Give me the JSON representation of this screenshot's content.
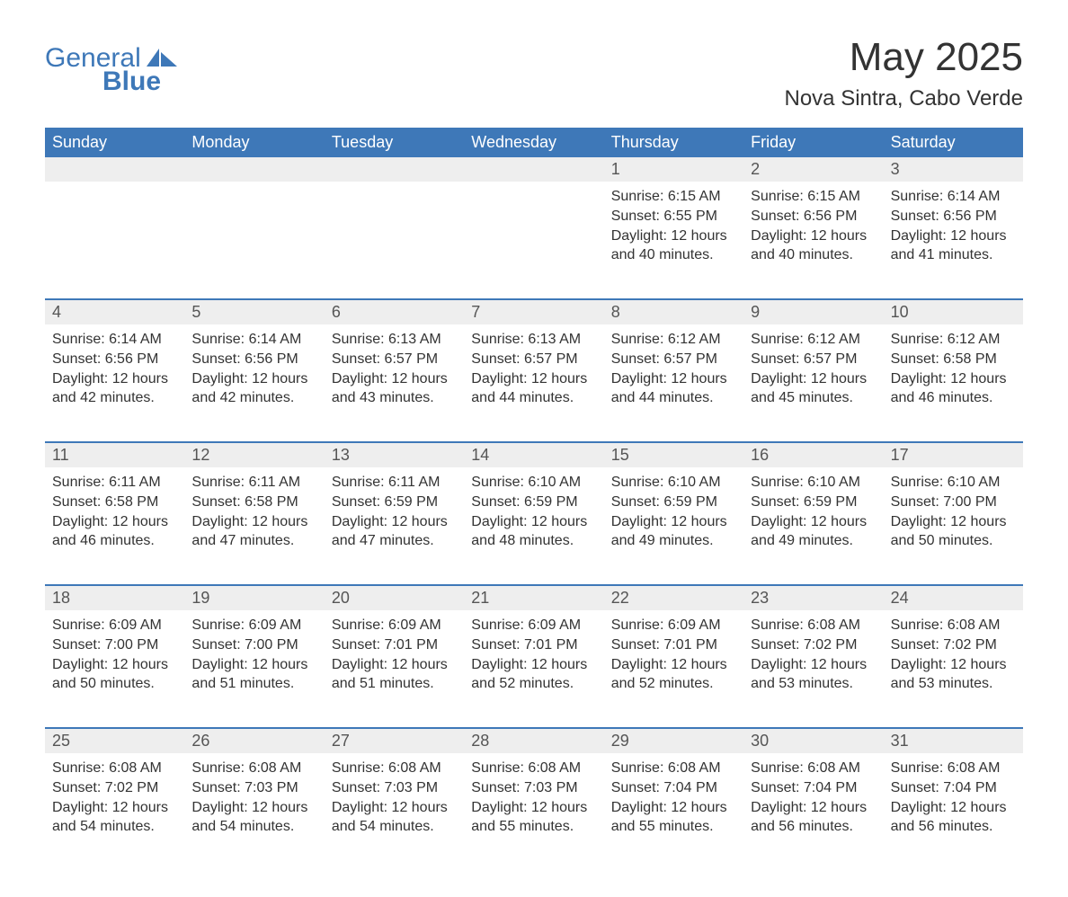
{
  "logo": {
    "text1": "General",
    "text2": "Blue",
    "icon_fill": "#3e78b8"
  },
  "colors": {
    "header_bg": "#3e78b8",
    "daynum_bg": "#eeeeee",
    "text": "#333333",
    "divider": "#3e78b8"
  },
  "title": "May 2025",
  "location": "Nova Sintra, Cabo Verde",
  "weekdays": [
    "Sunday",
    "Monday",
    "Tuesday",
    "Wednesday",
    "Thursday",
    "Friday",
    "Saturday"
  ],
  "weeks": [
    [
      {
        "day": "",
        "sunrise": "",
        "sunset": "",
        "daylight": ""
      },
      {
        "day": "",
        "sunrise": "",
        "sunset": "",
        "daylight": ""
      },
      {
        "day": "",
        "sunrise": "",
        "sunset": "",
        "daylight": ""
      },
      {
        "day": "",
        "sunrise": "",
        "sunset": "",
        "daylight": ""
      },
      {
        "day": "1",
        "sunrise": "Sunrise: 6:15 AM",
        "sunset": "Sunset: 6:55 PM",
        "daylight": "Daylight: 12 hours and 40 minutes."
      },
      {
        "day": "2",
        "sunrise": "Sunrise: 6:15 AM",
        "sunset": "Sunset: 6:56 PM",
        "daylight": "Daylight: 12 hours and 40 minutes."
      },
      {
        "day": "3",
        "sunrise": "Sunrise: 6:14 AM",
        "sunset": "Sunset: 6:56 PM",
        "daylight": "Daylight: 12 hours and 41 minutes."
      }
    ],
    [
      {
        "day": "4",
        "sunrise": "Sunrise: 6:14 AM",
        "sunset": "Sunset: 6:56 PM",
        "daylight": "Daylight: 12 hours and 42 minutes."
      },
      {
        "day": "5",
        "sunrise": "Sunrise: 6:14 AM",
        "sunset": "Sunset: 6:56 PM",
        "daylight": "Daylight: 12 hours and 42 minutes."
      },
      {
        "day": "6",
        "sunrise": "Sunrise: 6:13 AM",
        "sunset": "Sunset: 6:57 PM",
        "daylight": "Daylight: 12 hours and 43 minutes."
      },
      {
        "day": "7",
        "sunrise": "Sunrise: 6:13 AM",
        "sunset": "Sunset: 6:57 PM",
        "daylight": "Daylight: 12 hours and 44 minutes."
      },
      {
        "day": "8",
        "sunrise": "Sunrise: 6:12 AM",
        "sunset": "Sunset: 6:57 PM",
        "daylight": "Daylight: 12 hours and 44 minutes."
      },
      {
        "day": "9",
        "sunrise": "Sunrise: 6:12 AM",
        "sunset": "Sunset: 6:57 PM",
        "daylight": "Daylight: 12 hours and 45 minutes."
      },
      {
        "day": "10",
        "sunrise": "Sunrise: 6:12 AM",
        "sunset": "Sunset: 6:58 PM",
        "daylight": "Daylight: 12 hours and 46 minutes."
      }
    ],
    [
      {
        "day": "11",
        "sunrise": "Sunrise: 6:11 AM",
        "sunset": "Sunset: 6:58 PM",
        "daylight": "Daylight: 12 hours and 46 minutes."
      },
      {
        "day": "12",
        "sunrise": "Sunrise: 6:11 AM",
        "sunset": "Sunset: 6:58 PM",
        "daylight": "Daylight: 12 hours and 47 minutes."
      },
      {
        "day": "13",
        "sunrise": "Sunrise: 6:11 AM",
        "sunset": "Sunset: 6:59 PM",
        "daylight": "Daylight: 12 hours and 47 minutes."
      },
      {
        "day": "14",
        "sunrise": "Sunrise: 6:10 AM",
        "sunset": "Sunset: 6:59 PM",
        "daylight": "Daylight: 12 hours and 48 minutes."
      },
      {
        "day": "15",
        "sunrise": "Sunrise: 6:10 AM",
        "sunset": "Sunset: 6:59 PM",
        "daylight": "Daylight: 12 hours and 49 minutes."
      },
      {
        "day": "16",
        "sunrise": "Sunrise: 6:10 AM",
        "sunset": "Sunset: 6:59 PM",
        "daylight": "Daylight: 12 hours and 49 minutes."
      },
      {
        "day": "17",
        "sunrise": "Sunrise: 6:10 AM",
        "sunset": "Sunset: 7:00 PM",
        "daylight": "Daylight: 12 hours and 50 minutes."
      }
    ],
    [
      {
        "day": "18",
        "sunrise": "Sunrise: 6:09 AM",
        "sunset": "Sunset: 7:00 PM",
        "daylight": "Daylight: 12 hours and 50 minutes."
      },
      {
        "day": "19",
        "sunrise": "Sunrise: 6:09 AM",
        "sunset": "Sunset: 7:00 PM",
        "daylight": "Daylight: 12 hours and 51 minutes."
      },
      {
        "day": "20",
        "sunrise": "Sunrise: 6:09 AM",
        "sunset": "Sunset: 7:01 PM",
        "daylight": "Daylight: 12 hours and 51 minutes."
      },
      {
        "day": "21",
        "sunrise": "Sunrise: 6:09 AM",
        "sunset": "Sunset: 7:01 PM",
        "daylight": "Daylight: 12 hours and 52 minutes."
      },
      {
        "day": "22",
        "sunrise": "Sunrise: 6:09 AM",
        "sunset": "Sunset: 7:01 PM",
        "daylight": "Daylight: 12 hours and 52 minutes."
      },
      {
        "day": "23",
        "sunrise": "Sunrise: 6:08 AM",
        "sunset": "Sunset: 7:02 PM",
        "daylight": "Daylight: 12 hours and 53 minutes."
      },
      {
        "day": "24",
        "sunrise": "Sunrise: 6:08 AM",
        "sunset": "Sunset: 7:02 PM",
        "daylight": "Daylight: 12 hours and 53 minutes."
      }
    ],
    [
      {
        "day": "25",
        "sunrise": "Sunrise: 6:08 AM",
        "sunset": "Sunset: 7:02 PM",
        "daylight": "Daylight: 12 hours and 54 minutes."
      },
      {
        "day": "26",
        "sunrise": "Sunrise: 6:08 AM",
        "sunset": "Sunset: 7:03 PM",
        "daylight": "Daylight: 12 hours and 54 minutes."
      },
      {
        "day": "27",
        "sunrise": "Sunrise: 6:08 AM",
        "sunset": "Sunset: 7:03 PM",
        "daylight": "Daylight: 12 hours and 54 minutes."
      },
      {
        "day": "28",
        "sunrise": "Sunrise: 6:08 AM",
        "sunset": "Sunset: 7:03 PM",
        "daylight": "Daylight: 12 hours and 55 minutes."
      },
      {
        "day": "29",
        "sunrise": "Sunrise: 6:08 AM",
        "sunset": "Sunset: 7:04 PM",
        "daylight": "Daylight: 12 hours and 55 minutes."
      },
      {
        "day": "30",
        "sunrise": "Sunrise: 6:08 AM",
        "sunset": "Sunset: 7:04 PM",
        "daylight": "Daylight: 12 hours and 56 minutes."
      },
      {
        "day": "31",
        "sunrise": "Sunrise: 6:08 AM",
        "sunset": "Sunset: 7:04 PM",
        "daylight": "Daylight: 12 hours and 56 minutes."
      }
    ]
  ]
}
